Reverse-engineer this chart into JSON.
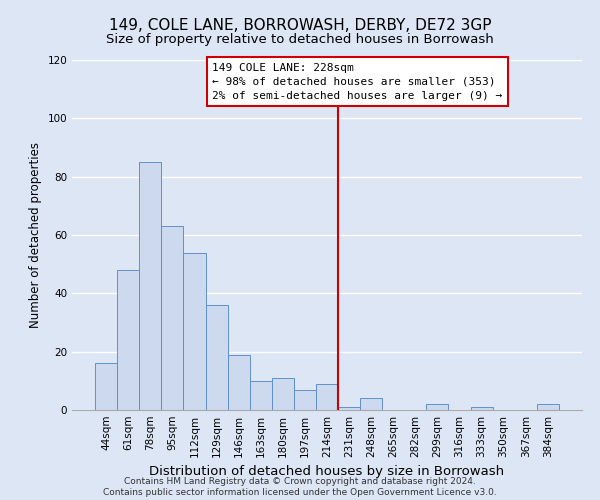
{
  "title": "149, COLE LANE, BORROWASH, DERBY, DE72 3GP",
  "subtitle": "Size of property relative to detached houses in Borrowash",
  "xlabel": "Distribution of detached houses by size in Borrowash",
  "ylabel": "Number of detached properties",
  "bar_labels": [
    "44sqm",
    "61sqm",
    "78sqm",
    "95sqm",
    "112sqm",
    "129sqm",
    "146sqm",
    "163sqm",
    "180sqm",
    "197sqm",
    "214sqm",
    "231sqm",
    "248sqm",
    "265sqm",
    "282sqm",
    "299sqm",
    "316sqm",
    "333sqm",
    "350sqm",
    "367sqm",
    "384sqm"
  ],
  "bar_values": [
    16,
    48,
    85,
    63,
    54,
    36,
    19,
    10,
    11,
    7,
    9,
    1,
    4,
    0,
    0,
    2,
    0,
    1,
    0,
    0,
    2
  ],
  "bar_color": "#ccd9ef",
  "bar_edge_color": "#6090cc",
  "vline_x": 10.5,
  "vline_color": "#cc0000",
  "ylim": [
    0,
    120
  ],
  "yticks": [
    0,
    20,
    40,
    60,
    80,
    100,
    120
  ],
  "annotation_title": "149 COLE LANE: 228sqm",
  "annotation_line1": "← 98% of detached houses are smaller (353)",
  "annotation_line2": "2% of semi-detached houses are larger (9) →",
  "annotation_box_color": "#ffffff",
  "annotation_box_edge": "#cc0000",
  "footnote1": "Contains HM Land Registry data © Crown copyright and database right 2024.",
  "footnote2": "Contains public sector information licensed under the Open Government Licence v3.0.",
  "bg_color": "#dde6f5",
  "plot_bg_color": "#dde6f5",
  "grid_color": "#ffffff",
  "title_fontsize": 11,
  "subtitle_fontsize": 9.5,
  "xlabel_fontsize": 9.5,
  "ylabel_fontsize": 8.5,
  "tick_fontsize": 7.5,
  "annotation_fontsize": 8,
  "footnote_fontsize": 6.5
}
